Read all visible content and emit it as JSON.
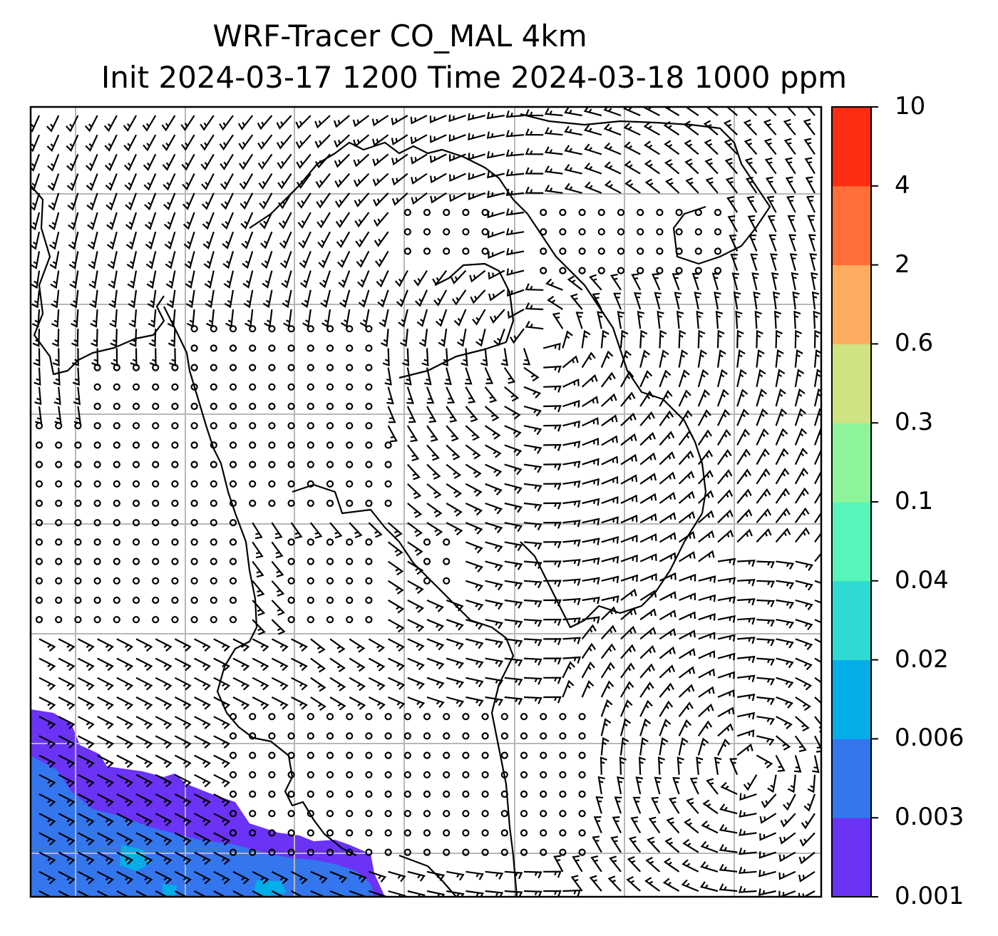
{
  "title": {
    "line1": "WRF-Tracer CO_MAL 4km",
    "line2": "Init 2024-03-17 1200 Time 2024-03-18 1000 ppm"
  },
  "colorbar": {
    "levels": [
      "0.001",
      "0.003",
      "0.006",
      "0.02",
      "0.04",
      "0.1",
      "0.3",
      "0.6",
      "2",
      "4",
      "10"
    ],
    "colors": [
      "#6a33f6",
      "#3376ee",
      "#03aee8",
      "#2ddbd2",
      "#57f5b9",
      "#8ef49a",
      "#cfe383",
      "#fdad60",
      "#ff6f39",
      "#ff2d13"
    ]
  },
  "map": {
    "tracer_color_low": "#6a33f6",
    "tracer_color_mid": "#3376ee",
    "tracer_color_high": "#03aee8",
    "gridline_color": "#b8b8b8",
    "barb_color": "#000000"
  }
}
